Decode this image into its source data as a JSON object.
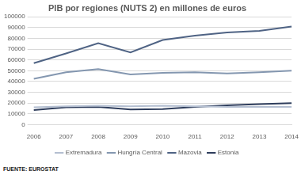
{
  "chart_data": {
    "type": "line",
    "title": "PIB por regiones (NUTS 2) en millones de euros",
    "annotation": "FUENTE: EUROSTAT",
    "categories": [
      "2006",
      "2007",
      "2008",
      "2009",
      "2010",
      "2011",
      "2012",
      "2013",
      "2014"
    ],
    "series": [
      {
        "name": "Extremadura",
        "color": "#b4bfd1",
        "values": [
          16000,
          17000,
          17500,
          17000,
          17500,
          17000,
          16500,
          16500,
          16500
        ]
      },
      {
        "name": "Hungría Central",
        "color": "#8497b0",
        "values": [
          42500,
          48500,
          51500,
          46500,
          48000,
          48500,
          47500,
          48500,
          50000
        ]
      },
      {
        "name": "Mazovia",
        "color": "#4f6384",
        "values": [
          57000,
          66000,
          75500,
          67000,
          78500,
          82500,
          85500,
          87000,
          91000
        ]
      },
      {
        "name": "Estonia",
        "color": "#2e3d5c",
        "values": [
          13500,
          16000,
          16500,
          14000,
          14500,
          16500,
          18000,
          19000,
          20000
        ]
      }
    ],
    "ylim": [
      0,
      100000
    ],
    "yticks": [
      0,
      10000,
      20000,
      30000,
      40000,
      50000,
      60000,
      70000,
      80000,
      90000,
      100000
    ],
    "grid": true,
    "legend": "bottom"
  }
}
